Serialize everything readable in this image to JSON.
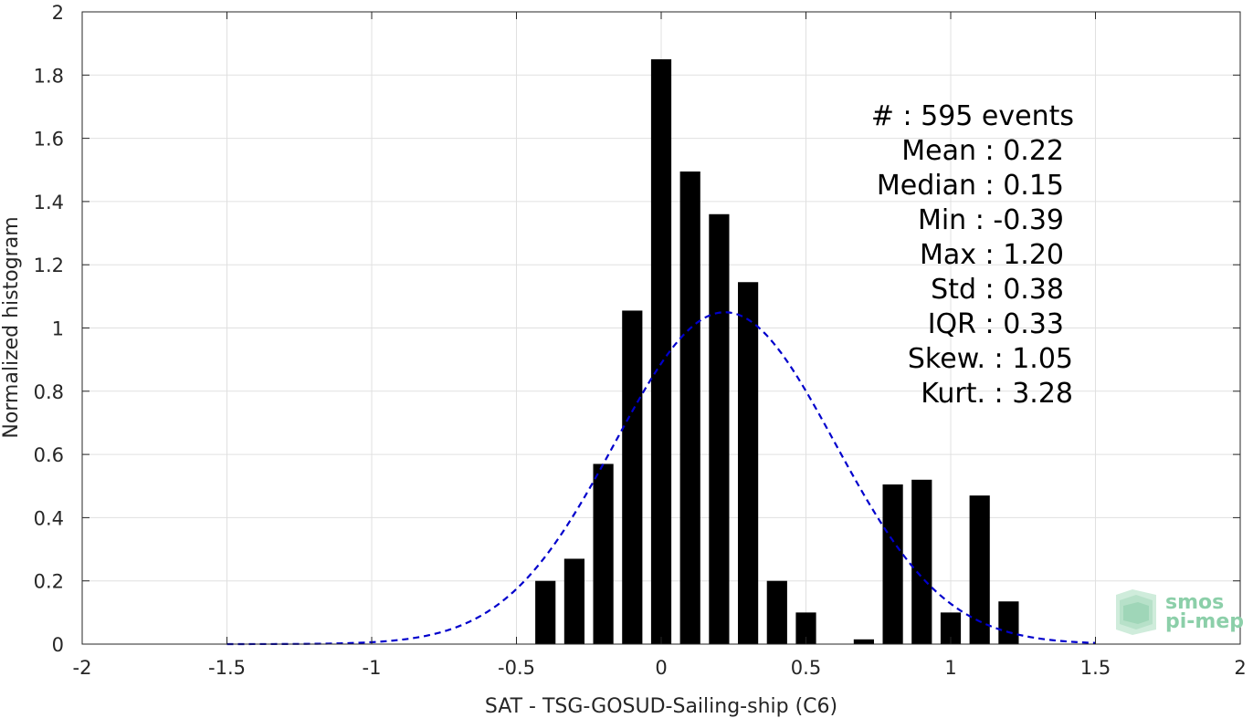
{
  "chart_data": {
    "type": "bar",
    "xlabel": "SAT - TSG-GOSUD-Sailing-ship (C6)",
    "ylabel": "Normalized histogram",
    "xlim": [
      -2,
      2
    ],
    "ylim": [
      0,
      2
    ],
    "xticks": [
      -2,
      -1.5,
      -1,
      -0.5,
      0,
      0.5,
      1,
      1.5,
      2
    ],
    "xtick_labels": [
      "-2",
      "-1.5",
      "-1",
      "-0.5",
      "0",
      "0.5",
      "1",
      "1.5",
      "2"
    ],
    "yticks": [
      0,
      0.2,
      0.4,
      0.6,
      0.8,
      1,
      1.2,
      1.4,
      1.6,
      1.8,
      2
    ],
    "ytick_labels": [
      "0",
      "0.2",
      "0.4",
      "0.6",
      "0.8",
      "1",
      "1.2",
      "1.4",
      "1.6",
      "1.8",
      "2"
    ],
    "grid": true,
    "bar_width": 0.07,
    "bar_color": "#000000",
    "bars": [
      {
        "x": -0.4,
        "value": 0.2
      },
      {
        "x": -0.3,
        "value": 0.27
      },
      {
        "x": -0.2,
        "value": 0.57
      },
      {
        "x": -0.1,
        "value": 1.055
      },
      {
        "x": 0.0,
        "value": 1.85
      },
      {
        "x": 0.1,
        "value": 1.495
      },
      {
        "x": 0.2,
        "value": 1.36
      },
      {
        "x": 0.3,
        "value": 1.145
      },
      {
        "x": 0.4,
        "value": 0.2
      },
      {
        "x": 0.5,
        "value": 0.1
      },
      {
        "x": 0.7,
        "value": 0.015
      },
      {
        "x": 0.8,
        "value": 0.505
      },
      {
        "x": 0.9,
        "value": 0.52
      },
      {
        "x": 1.0,
        "value": 0.1
      },
      {
        "x": 1.1,
        "value": 0.47
      },
      {
        "x": 1.2,
        "value": 0.135
      }
    ],
    "fit_curve": {
      "type": "gaussian",
      "mean": 0.22,
      "std": 0.38,
      "x_range": [
        -1.5,
        1.5
      ],
      "color": "#0000cc",
      "style": "dashed"
    },
    "annotations": [
      "#  : 595 events",
      "Mean : 0.22",
      "Median : 0.15",
      "Min : -0.39",
      "Max : 1.20",
      "Std : 0.38",
      "IQR : 0.33",
      "Skew. : 1.05",
      "Kurt. : 3.28"
    ]
  },
  "logo": {
    "line1": "smos",
    "line2": "pi-mep",
    "color": "#8ccfa9"
  }
}
